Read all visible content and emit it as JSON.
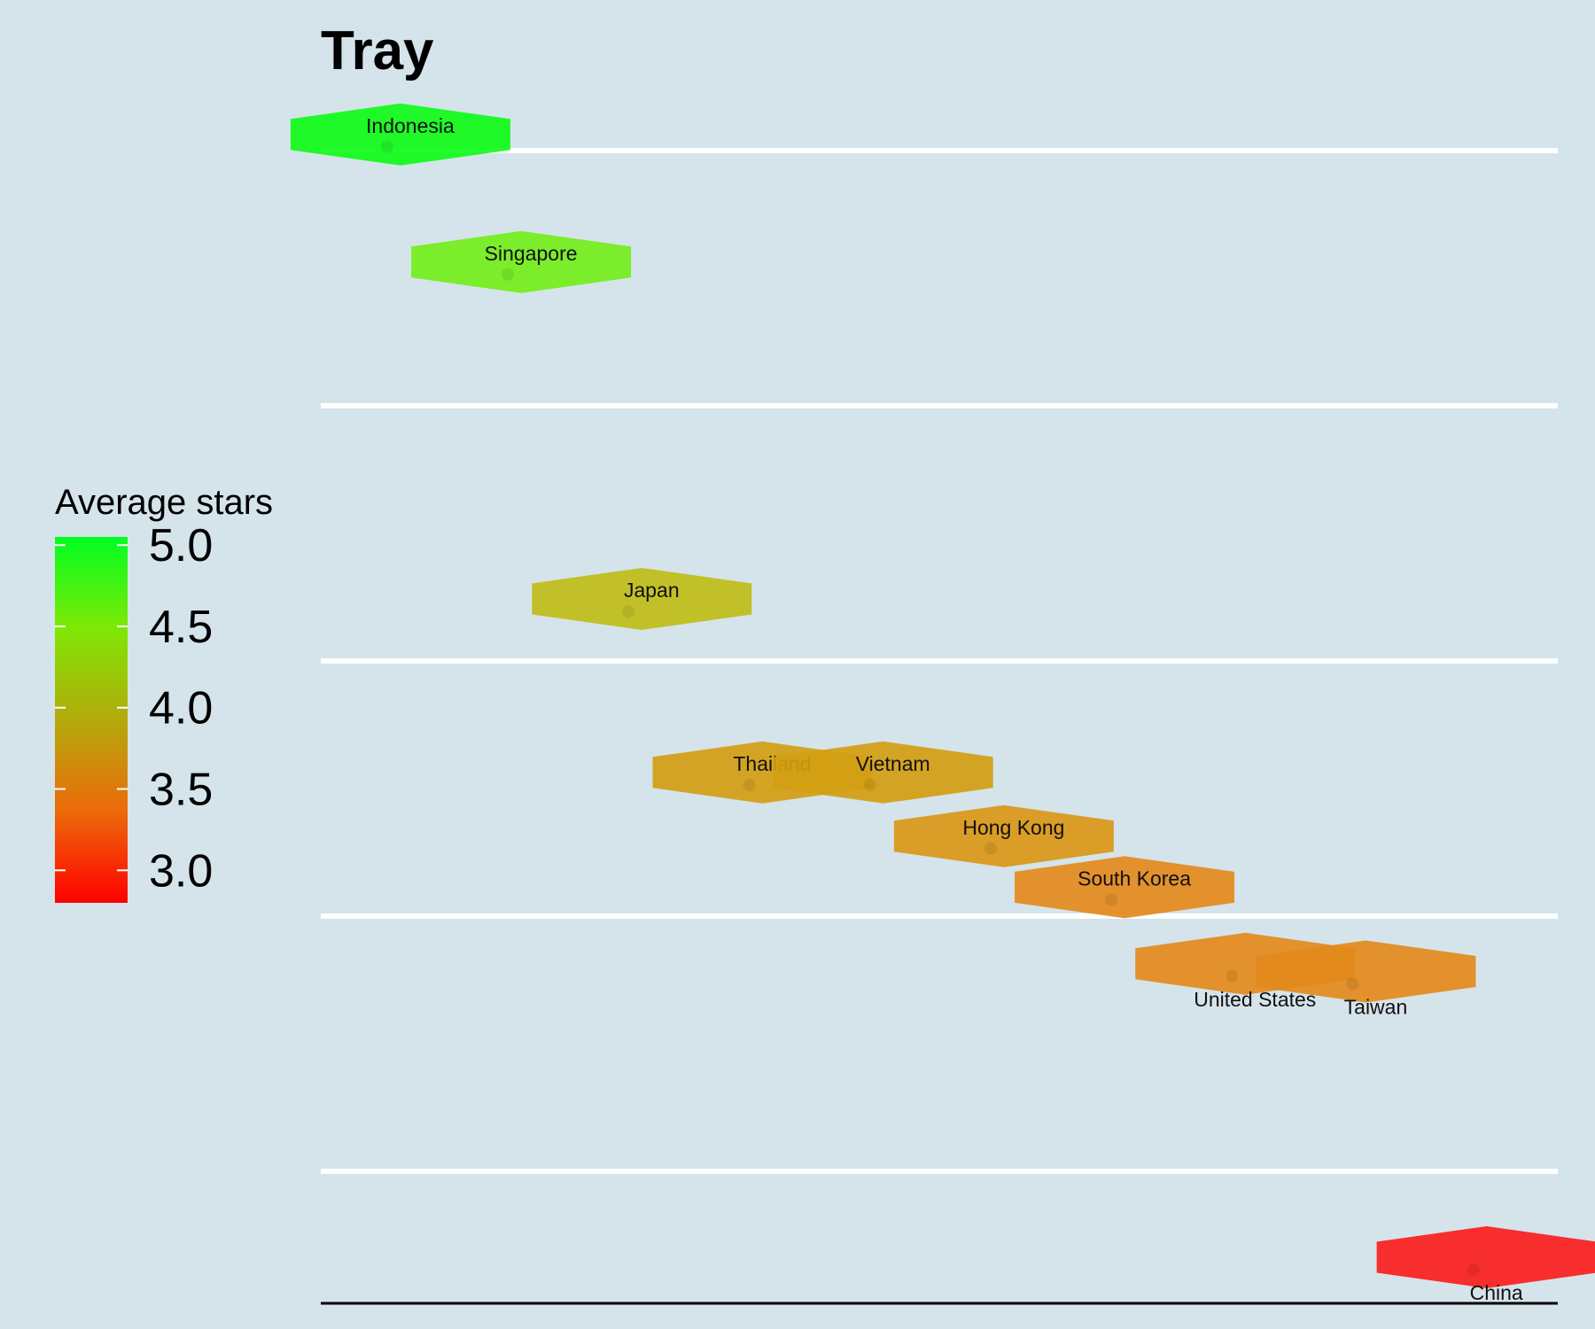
{
  "chart_data": {
    "type": "scatter",
    "title": "Tray",
    "xlabel": "",
    "ylabel": "",
    "grid": "horizontal",
    "legend": {
      "title": "Average stars",
      "position": "left",
      "range": [
        2.8,
        5.05
      ],
      "ticks": [
        "5.0",
        "4.5",
        "4.0",
        "3.5",
        "3.0"
      ],
      "tick_values": [
        5.0,
        4.5,
        4.0,
        3.5,
        3.0
      ],
      "gradient": {
        "low": "#ff0000",
        "high": "#00ff22"
      }
    },
    "points": [
      {
        "label": "Indonesia",
        "x": 1.0,
        "y": 0.1,
        "stars": 5.0,
        "color": "#0ffb17"
      },
      {
        "label": "Singapore",
        "x": 2.0,
        "y": 0.6,
        "stars": 4.6,
        "color": "#73ee1a"
      },
      {
        "label": "Japan",
        "x": 3.0,
        "y": 1.92,
        "stars": 4.2,
        "color": "#bfbd17"
      },
      {
        "label": "Thailand",
        "x": 4.0,
        "y": 2.6,
        "stars": 3.85,
        "color": "#d39e12"
      },
      {
        "label": "Vietnam",
        "x": 5.0,
        "y": 2.6,
        "stars": 3.85,
        "color": "#d39e12"
      },
      {
        "label": "Hong Kong",
        "x": 6.0,
        "y": 2.85,
        "stars": 3.8,
        "color": "#d99717"
      },
      {
        "label": "South Korea",
        "x": 7.0,
        "y": 3.05,
        "stars": 3.7,
        "color": "#e38a1c"
      },
      {
        "label": "United States",
        "x": 8.0,
        "y": 3.35,
        "stars": 3.7,
        "color": "#e38a1c"
      },
      {
        "label": "Taiwan",
        "x": 9.0,
        "y": 3.38,
        "stars": 3.7,
        "color": "#e38a1c"
      },
      {
        "label": "China",
        "x": 10.0,
        "y": 4.5,
        "stars": 3.0,
        "color": "#fb1d1d"
      }
    ]
  }
}
